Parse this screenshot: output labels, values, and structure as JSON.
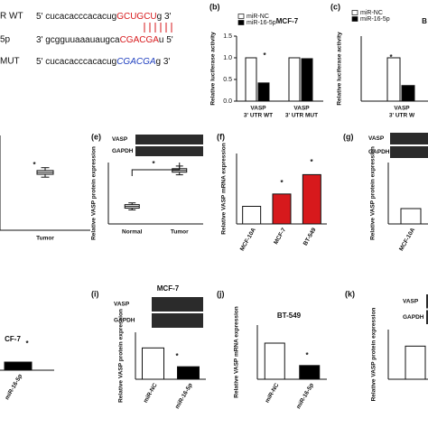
{
  "sequences": [
    {
      "label": "R WT",
      "head": "5' cucacacccacacug",
      "site": "GCUGCU",
      "tail": "g 3'"
    },
    {
      "label": "5p",
      "head": "3' gcgguuaaauaugca",
      "site": "CGACGA",
      "tail": "u 5'"
    },
    {
      "label": "MUT",
      "head": "5' cucacacccacacug",
      "site": "CGACGA",
      "tail": "g 3'"
    }
  ],
  "chart_data": [
    {
      "type": "bar",
      "panel": "(b)",
      "title": "MCF-7",
      "ylabel": "Relative luciferase activity",
      "categories": [
        [
          "VASP",
          "3' UTR WT"
        ],
        [
          "VASP",
          "3' UTR MUT"
        ]
      ],
      "series": [
        {
          "name": "miR-NC",
          "color": "#ffffff",
          "values": [
            1.0,
            1.0
          ]
        },
        {
          "name": "miR-16-5p",
          "color": "#000000",
          "values": [
            0.42,
            0.98
          ]
        }
      ],
      "ylim": [
        0,
        1.5
      ],
      "yticks": [
        {
          "value": 0,
          "label": "0.0"
        },
        {
          "value": 0.5,
          "label": "0.5"
        },
        {
          "value": 1,
          "label": "1.0"
        },
        {
          "value": 1.5,
          "label": "1.5"
        }
      ],
      "annotations": [
        "*"
      ]
    },
    {
      "type": "bar",
      "panel": "(c)",
      "title": "B",
      "ylabel": "Relative luciferase activity",
      "categories": [
        [
          "VASP",
          "3' UTR W"
        ]
      ],
      "series": [
        {
          "name": "miR-NC",
          "color": "#ffffff",
          "values": [
            1.0
          ]
        },
        {
          "name": "miR-16-5p",
          "color": "#000000",
          "values": [
            0.36
          ]
        }
      ],
      "ylim": [
        0,
        1.5
      ],
      "annotations": [
        "*"
      ]
    },
    {
      "type": "box",
      "categories": [
        "Tumor"
      ],
      "min": [
        2.8
      ],
      "q1": [
        2.95
      ],
      "median": [
        3.05
      ],
      "q3": [
        3.15
      ],
      "max": [
        3.3
      ],
      "ylim": [
        0,
        5
      ],
      "annotations": [
        "*"
      ]
    },
    {
      "type": "box",
      "panel": "(e)",
      "ylabel": "Relative VASP protein expression",
      "blot": [
        "VASP",
        "GAPDH"
      ],
      "categories": [
        "Normal",
        "Tumor"
      ],
      "min": [
        0.8,
        2.8
      ],
      "q1": [
        0.9,
        2.95
      ],
      "median": [
        1.0,
        3.05
      ],
      "q3": [
        1.1,
        3.15
      ],
      "max": [
        1.2,
        3.3
      ],
      "ylim": [
        0,
        3.5
      ],
      "annotations": [
        "*"
      ]
    },
    {
      "type": "bar",
      "panel": "(f)",
      "ylabel": "Relative VASP mRNA expression",
      "categories": [
        "MCF-10A",
        "MCF-7",
        "BT-549"
      ],
      "values": [
        1.0,
        1.7,
        2.8
      ],
      "colors": [
        "#ffffff",
        "#d7191c",
        "#d7191c"
      ],
      "ylim": [
        0,
        4
      ],
      "annotations": [
        "*",
        "*"
      ]
    },
    {
      "type": "bar",
      "panel": "(g)",
      "ylabel": "Relative VASP protein expression",
      "blot": [
        "VASP",
        "GAPDH"
      ],
      "categories": [
        "MCF-10A"
      ],
      "values": [
        1.0
      ],
      "colors": [
        "#ffffff"
      ],
      "ylim": [
        0,
        4
      ]
    },
    {
      "type": "bar",
      "title": "CF-7",
      "categories": [
        "miR-16-5p"
      ],
      "values": [
        0.45
      ],
      "colors": [
        "#000000"
      ],
      "ylim": [
        0,
        1.5
      ],
      "annotations": [
        "*"
      ]
    },
    {
      "type": "bar",
      "panel": "(i)",
      "title": "MCF-7",
      "ylabel": "Relative VASP protein expression",
      "blot": [
        "VASP",
        "GAPDH"
      ],
      "categories": [
        "miR-NC",
        "miR-16-5p"
      ],
      "values": [
        1.0,
        0.4
      ],
      "colors": [
        "#ffffff",
        "#000000"
      ],
      "ylim": [
        0,
        1.5
      ],
      "annotations": [
        "*"
      ]
    },
    {
      "type": "bar",
      "panel": "(j)",
      "title": "BT-549",
      "ylabel": "Relative VASP mRNA expression",
      "categories": [
        "miR-NC",
        "miR-16-5p"
      ],
      "values": [
        1.0,
        0.38
      ],
      "colors": [
        "#ffffff",
        "#000000"
      ],
      "ylim": [
        0,
        1.5
      ],
      "annotations": [
        "*"
      ]
    },
    {
      "type": "bar",
      "panel": "(k)",
      "ylabel": "Relative VASP protein expression",
      "blot": [
        "VASP",
        "GAPDH"
      ],
      "categories": [
        null
      ],
      "values": [
        1.0
      ],
      "colors": [
        "#ffffff"
      ],
      "ylim": [
        0,
        1.5
      ]
    }
  ]
}
